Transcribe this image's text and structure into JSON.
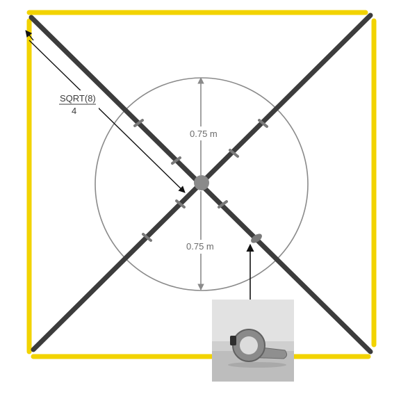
{
  "diagram": {
    "dimension_top": "0.75 m",
    "dimension_bottom": "0.75 m",
    "diagonal_formula_numerator": "SQRT(8)",
    "diagonal_formula_denominator": "4"
  },
  "colors": {
    "frame": "#f2d300",
    "beam": "#3c3c3c",
    "circle": "#8a8a8a",
    "dimension": "#8a8a8a",
    "marker": "#777777"
  }
}
